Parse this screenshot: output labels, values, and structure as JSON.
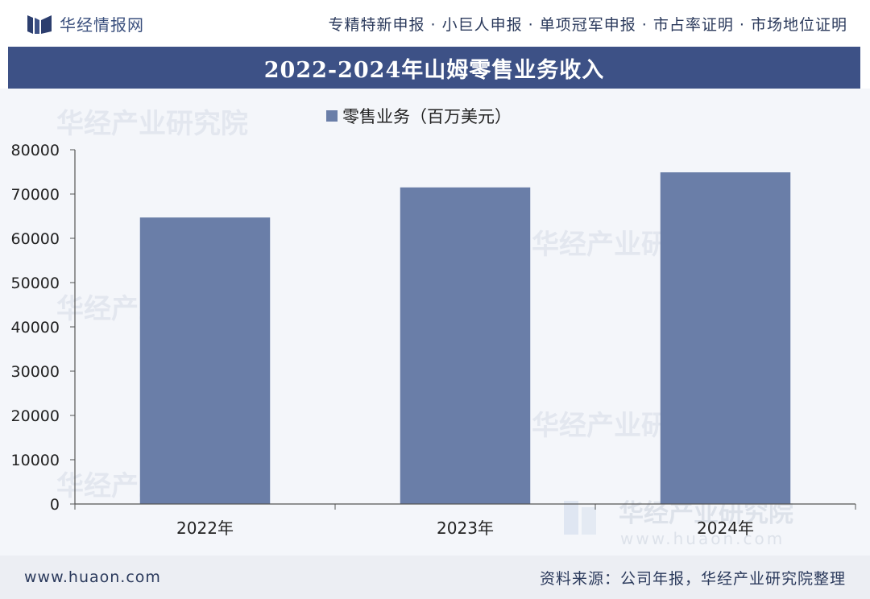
{
  "header": {
    "brand_name": "华经情报网",
    "tagline": "专精特新申报 · 小巨人申报 · 单项冠军申报 · 市占率证明 · 市场地位证明"
  },
  "title": "2022-2024年山姆零售业务收入",
  "watermark": {
    "name": "华经产业研究院",
    "url": "www.huaon.com"
  },
  "footer": {
    "site": "www.huaon.com",
    "source": "资料来源：公司年报，华经产业研究院整理"
  },
  "colors": {
    "bar": "#6a7ea8",
    "title_bg": "#3d5186",
    "plot_bg": "#f4f6fa",
    "text": "#222222"
  },
  "icons": [
    "huaon-logo-icon"
  ],
  "chart_data": {
    "type": "bar",
    "categories": [
      "2022年",
      "2023年",
      "2024年"
    ],
    "series": [
      {
        "name": "零售业务（百万美元）",
        "values": [
          64700,
          71500,
          74900
        ]
      }
    ],
    "ylim": [
      0,
      80000
    ],
    "yticks": [
      "0",
      "10000",
      "20000",
      "30000",
      "40000",
      "50000",
      "60000",
      "70000",
      "80000"
    ],
    "legend_position": "top-center",
    "grid": false
  }
}
